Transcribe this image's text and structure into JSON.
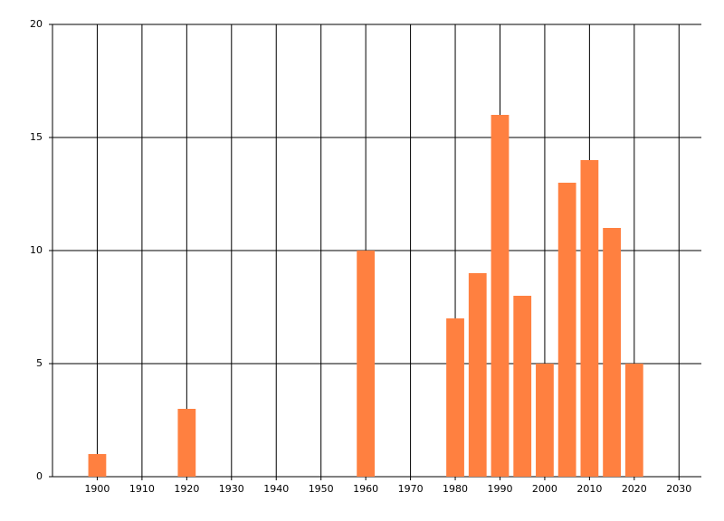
{
  "chart_data": {
    "type": "bar",
    "x": [
      1900,
      1920,
      1960,
      1980,
      1985,
      1990,
      1995,
      2000,
      2005,
      2010,
      2015,
      2020
    ],
    "values": [
      1,
      3,
      10,
      7,
      9,
      16,
      8,
      5,
      13,
      14,
      11,
      5
    ],
    "color": "#ff8040",
    "xlim": [
      1890,
      2035
    ],
    "xticks": [
      1900,
      1910,
      1920,
      1930,
      1940,
      1950,
      1960,
      1970,
      1980,
      1990,
      2000,
      2010,
      2020,
      2030
    ],
    "ylim": [
      0,
      20
    ],
    "yticks": [
      0,
      5,
      10,
      15,
      20
    ],
    "grid": true
  }
}
